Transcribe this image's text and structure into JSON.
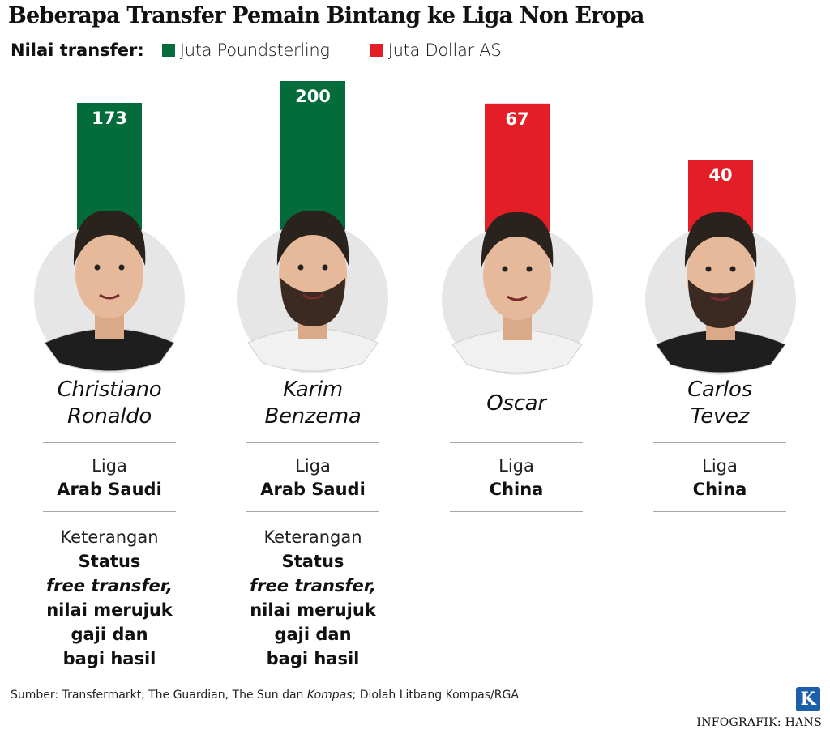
{
  "title": "Beberapa Transfer Pemain Bintang ke Liga Non Eropa",
  "legend": {
    "label": "Nilai transfer:",
    "items": [
      {
        "text": "Juta Poundsterling",
        "color": "#036c3a"
      },
      {
        "text": "Juta Dollar AS",
        "color": "#e31e26"
      }
    ]
  },
  "chart_data": {
    "type": "bar",
    "title": "Beberapa Transfer Pemain Bintang ke Liga Non Eropa",
    "categories": [
      "Christiano Ronaldo",
      "Karim Benzema",
      "Oscar",
      "Carlos Tevez"
    ],
    "values": [
      173,
      200,
      67,
      40
    ],
    "units": [
      "Juta Poundsterling",
      "Juta Poundsterling",
      "Juta Dollar AS",
      "Juta Dollar AS"
    ],
    "colors": [
      "#036c3a",
      "#036c3a",
      "#e31e26",
      "#e31e26"
    ],
    "series": [
      {
        "name": "Juta Poundsterling",
        "values": [
          173,
          200,
          null,
          null
        ]
      },
      {
        "name": "Juta Dollar AS",
        "values": [
          null,
          null,
          67,
          40
        ]
      }
    ],
    "xlabel": "",
    "ylabel": "",
    "legend": "top-left",
    "grid": false
  },
  "players": [
    {
      "name": "Christiano\nRonaldo",
      "liga_label": "Liga",
      "liga": "Arab Saudi",
      "keterangan_label": "Keterangan",
      "keterangan": {
        "line1": "Status",
        "line2": "free transfer,",
        "line3": "nilai merujuk",
        "line4": "gaji dan",
        "line5": "bagi hasil"
      }
    },
    {
      "name": "Karim\nBenzema",
      "liga_label": "Liga",
      "liga": "Arab Saudi",
      "keterangan_label": "Keterangan",
      "keterangan": {
        "line1": "Status",
        "line2": "free transfer,",
        "line3": "nilai merujuk",
        "line4": "gaji dan",
        "line5": "bagi hasil"
      }
    },
    {
      "name": "Oscar",
      "liga_label": "Liga",
      "liga": "China"
    },
    {
      "name": "Carlos\nTevez",
      "liga_label": "Liga",
      "liga": "China"
    }
  ],
  "source": {
    "prefix": "Sumber: Transfermarkt, The Guardian, The Sun dan ",
    "italic": "Kompas",
    "suffix": "; Diolah Litbang Kompas/RGA"
  },
  "logo_letter": "K",
  "credit": "INFOGRAFIK: HANS",
  "icons": [
    "player-portrait-icon",
    "kompas-logo-icon"
  ]
}
